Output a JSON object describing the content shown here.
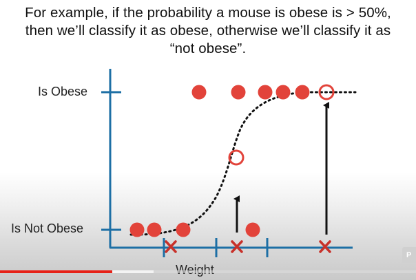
{
  "caption": {
    "line1": "For example, if the probability a mouse is obese is > 50%,",
    "line2": "then we’ll classify it as obese, otherwise we’ll classify it as",
    "line3": "“not obese”."
  },
  "axes": {
    "y_top_label": "Is Obese",
    "y_bottom_label": "Is Not Obese",
    "x_label": "Weight",
    "axis_color": "#1d6fa5"
  },
  "colors": {
    "obese_point": "#e2433a",
    "classification_mark": "#c8312a",
    "curve": "#111111",
    "arrow": "#111111"
  },
  "player": {
    "badge_text": "P",
    "progress_played": 0.27,
    "progress_color": "#e62117"
  }
}
